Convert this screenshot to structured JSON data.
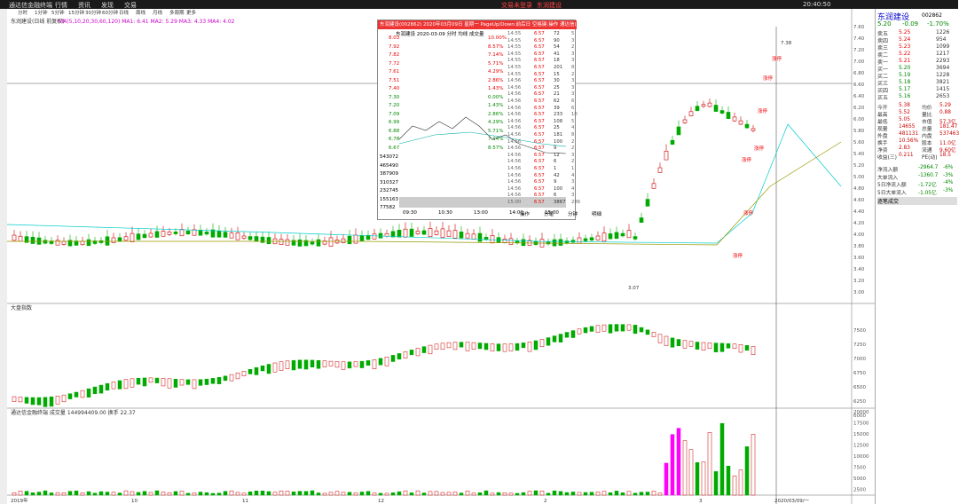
{
  "top_bar": {
    "app_title": "通达信金融终端",
    "menu": [
      "行情",
      "资讯",
      "发现",
      "交易"
    ],
    "center": [
      "交易未登录",
      "东润建设"
    ],
    "clock": "20:40:50"
  },
  "chart": {
    "header": "东润建设(日线 前复权)",
    "ma_text": "MA(5,10,20,30,60,120) MA1: 6.41 MA2: 5.29 MA3: 4.33 MA4: 4.02",
    "periods": [
      "分时",
      "1分钟",
      "5分钟",
      "15分钟",
      "30分钟",
      "60分钟",
      "日线",
      "周线",
      "月线",
      "多周期",
      "更多"
    ],
    "price_ticks": [
      "7.60",
      "7.40",
      "7.20",
      "7.00",
      "6.80",
      "6.60",
      "6.40",
      "6.20",
      "6.00",
      "5.80",
      "5.60",
      "5.40",
      "5.20",
      "5.00",
      "4.80",
      "4.60",
      "4.40",
      "4.20",
      "4.00",
      "3.80",
      "3.60",
      "3.40",
      "3.20",
      "3.00"
    ],
    "annotations": [
      "涨停",
      "涨停",
      "涨停",
      "涨停",
      "涨停",
      "涨停",
      "涨停"
    ],
    "high_mark": "7.38",
    "low_mark": "3.07",
    "index_header": "大盘指数",
    "index_ticks": [
      "7500",
      "7250",
      "7000",
      "6750",
      "6500",
      "6250",
      "6000"
    ],
    "volume_header": "通达信金融终端 成交量 144994409.00 换手 22.37",
    "volume_ticks": [
      "20000",
      "17500",
      "15000",
      "12500",
      "10000",
      "7500",
      "5000",
      "2500"
    ],
    "dates": [
      "2019年",
      "10",
      "11",
      "12",
      "2",
      "3",
      "2020/03/09/一"
    ]
  },
  "popup": {
    "title": "东润建设(002862) 2020年03月09日 星期一 PageUp/Down:前后日 空格键:操作 通达信(R)",
    "header": "东润建设 2020-03-09 分时 均线 成交量",
    "prices": [
      "8.03",
      "7.92",
      "7.82",
      "7.72",
      "7.61",
      "7.51",
      "7.40",
      "7.30",
      "7.20",
      "7.09",
      "6.99",
      "6.88",
      "6.78",
      "6.67"
    ],
    "pcts": [
      "10.00%",
      "8.57%",
      "7.14%",
      "5.71%",
      "4.29%",
      "2.86%",
      "1.43%",
      "0.00%",
      "1.43%",
      "2.86%",
      "4.29%",
      "5.71%",
      "7.14%",
      "8.57%"
    ],
    "vols": [
      "543072",
      "465490",
      "387909",
      "310327",
      "232745",
      "155163",
      "77582"
    ],
    "times": [
      "09:30",
      "10:30",
      "13:00",
      "14:00",
      "15:00"
    ],
    "ticks": [
      [
        "14:55",
        "6.57",
        "72",
        "5"
      ],
      [
        "14:55",
        "6.57",
        "90",
        "3"
      ],
      [
        "14:55",
        "6.57",
        "54",
        "2"
      ],
      [
        "14:55",
        "6.57",
        "41",
        "3"
      ],
      [
        "14:55",
        "6.57",
        "18",
        "3"
      ],
      [
        "14:55",
        "6.57",
        "201",
        "8"
      ],
      [
        "14:55",
        "6.57",
        "15",
        "2"
      ],
      [
        "14:56",
        "6.57",
        "30",
        "3"
      ],
      [
        "14:56",
        "6.57",
        "25",
        "3"
      ],
      [
        "14:56",
        "6.57",
        "21",
        "3"
      ],
      [
        "14:56",
        "6.57",
        "62",
        "6"
      ],
      [
        "14:56",
        "6.57",
        "39",
        "6"
      ],
      [
        "14:56",
        "6.57",
        "233",
        "10"
      ],
      [
        "14:56",
        "6.57",
        "108",
        "5"
      ],
      [
        "14:56",
        "6.57",
        "25",
        "4"
      ],
      [
        "14:56",
        "6.57",
        "181",
        "8"
      ],
      [
        "14:56",
        "6.57",
        "100",
        "2"
      ],
      [
        "14:56",
        "6.57",
        "9",
        "2"
      ],
      [
        "14:56",
        "6.57",
        "12",
        "3"
      ],
      [
        "14:56",
        "6.57",
        "6",
        "2"
      ],
      [
        "14:56",
        "6.57",
        "1",
        "1"
      ],
      [
        "14:56",
        "6.57",
        "42",
        "4"
      ],
      [
        "14:56",
        "6.57",
        "9",
        "3"
      ],
      [
        "14:56",
        "6.57",
        "100",
        "4"
      ],
      [
        "14:56",
        "6.57",
        "6",
        "3"
      ],
      [
        "15:00",
        "6.57",
        "3867",
        "286"
      ]
    ],
    "buttons": [
      "操作",
      "分笔",
      "分钟",
      "明细"
    ]
  },
  "quote": {
    "name": "东润建设",
    "code": "002862",
    "price": "5.20",
    "change": "-0.09",
    "pct": "-1.70%",
    "book": [
      [
        "卖五",
        "5.25",
        "1226"
      ],
      [
        "卖四",
        "5.24",
        "954"
      ],
      [
        "卖三",
        "5.23",
        "1099"
      ],
      [
        "卖二",
        "5.22",
        "1217"
      ],
      [
        "卖一",
        "5.21",
        "2293"
      ],
      [
        "买一",
        "5.20",
        "3694"
      ],
      [
        "买二",
        "5.19",
        "1228"
      ],
      [
        "买三",
        "5.18",
        "3821"
      ],
      [
        "买四",
        "5.17",
        "1415"
      ],
      [
        "买五",
        "5.16",
        "2653"
      ]
    ],
    "stats": [
      [
        "今开",
        "5.38",
        "均价",
        "5.29"
      ],
      [
        "最高",
        "5.52",
        "量比",
        "0.88"
      ],
      [
        "最低",
        "5.05",
        "市值",
        "57.3亿"
      ],
      [
        "现量",
        "14655",
        "总量",
        "181.47"
      ],
      [
        "外盘",
        "481131",
        "内盘",
        "537463"
      ],
      [
        "换手",
        "10.56%",
        "股本",
        "11.0亿"
      ],
      [
        "净资",
        "2.83",
        "流通",
        "9.60亿"
      ],
      [
        "收益(三)",
        "0.211",
        "PE(动)",
        "18.5"
      ]
    ],
    "flows": [
      [
        "净流入额",
        "-2964.7",
        "-6%"
      ],
      [
        "大单流入",
        "-1360.7",
        "-3%"
      ],
      [
        "5日净流入额",
        "-1.72亿",
        "-4%"
      ],
      [
        "5日大单流入",
        "-1.05亿",
        "-3%"
      ]
    ],
    "detail_header": "逐笔成交"
  }
}
